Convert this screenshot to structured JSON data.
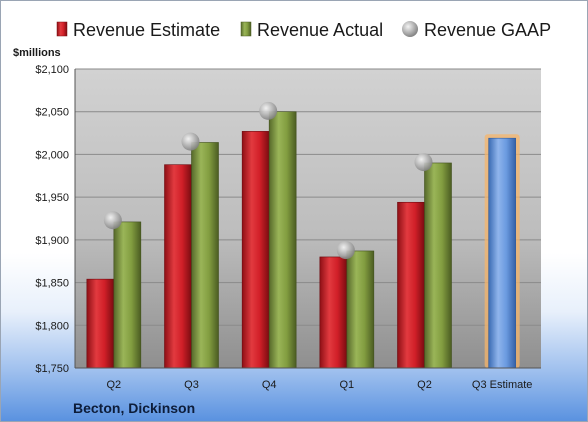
{
  "chart_data": {
    "type": "bar",
    "company": "Becton, Dickinson",
    "ylabel": "$millions",
    "ylim": [
      1750,
      2100
    ],
    "yticks": [
      "$1,750",
      "$1,800",
      "$1,850",
      "$1,900",
      "$1,950",
      "$2,000",
      "$2,050",
      "$2,100"
    ],
    "grid": true,
    "legend_position": "top",
    "categories": [
      "Q2",
      "Q3",
      "Q4",
      "Q1",
      "Q2",
      "Q3 Estimate"
    ],
    "series": [
      {
        "name": "Revenue Estimate",
        "kind": "bar",
        "color": "#d0202a",
        "values": [
          1854,
          1988,
          2027,
          1880,
          1944,
          null
        ]
      },
      {
        "name": "Revenue Actual",
        "kind": "bar",
        "color": "#7f9a3a",
        "values": [
          1921,
          2014,
          2050,
          1887,
          1990,
          null
        ]
      },
      {
        "name": "Revenue GAAP",
        "kind": "marker",
        "color": "#a9a9a9",
        "values": [
          1923,
          2015,
          2051,
          1888,
          1991,
          null
        ]
      },
      {
        "name": "",
        "kind": "highlight",
        "color": "#5b8fd6",
        "values": [
          null,
          null,
          null,
          null,
          null,
          2019
        ]
      }
    ]
  }
}
